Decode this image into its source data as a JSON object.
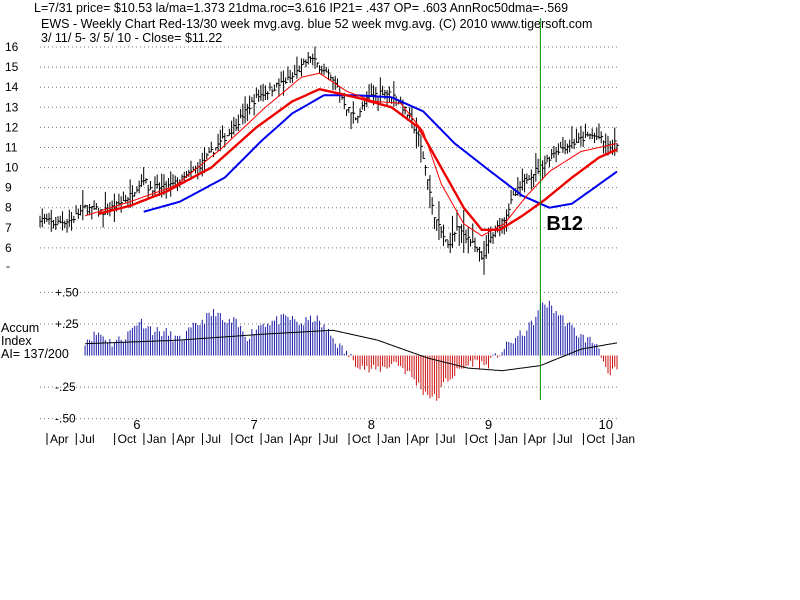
{
  "header": {
    "line1": "L=7/31  price= $10.53  la/ma=1.373 21dma.roc=3.616 IP21= .437 OP= .603 AnnRoc50dma=-.569",
    "line2": "EWS  - Weekly Chart  Red-13/30 week mvg.avg.  blue 52 week mvg.avg.  (C) 2010 www.tigersoft.com",
    "line3": " 3/ 11/ 5- 3/ 5/ 10 -      Close= $11.22"
  },
  "accum_label": {
    "line1": "Accum",
    "line2": "Index",
    "line3": "AI= 137/200"
  },
  "signal": {
    "label": "B12",
    "week": 222
  },
  "colors": {
    "price_bars": "#000000",
    "ma13": "#ff0000",
    "ma30": "#ee0000",
    "ma52": "#0000ee",
    "accum_pos": "#1c1ca8",
    "accum_neg": "#cc1111",
    "accum_avg": "#000000",
    "signal_line": "#008800",
    "grid": "#7a7a7a"
  },
  "chart_data": [
    {
      "type": "bar",
      "subtype": "ohlc-weekly",
      "ylim": [
        5,
        16.5
      ],
      "y_ticks": [
        16,
        15,
        14,
        13,
        12,
        11,
        10,
        9,
        8,
        7,
        6
      ],
      "bottom_tick": "-",
      "grid": "horizontal-dotted",
      "close_anchors": [
        [
          0,
          7.5
        ],
        [
          6,
          7.2
        ],
        [
          14,
          7.4
        ],
        [
          20,
          8.0
        ],
        [
          28,
          7.8
        ],
        [
          34,
          8.1
        ],
        [
          40,
          8.6
        ],
        [
          46,
          9.5
        ],
        [
          48,
          9.0
        ],
        [
          56,
          9.0
        ],
        [
          62,
          9.3
        ],
        [
          70,
          10.0
        ],
        [
          78,
          11.0
        ],
        [
          86,
          12.0
        ],
        [
          96,
          13.5
        ],
        [
          104,
          14.0
        ],
        [
          112,
          14.5
        ],
        [
          120,
          15.5
        ],
        [
          126,
          14.8
        ],
        [
          132,
          14.0
        ],
        [
          136,
          13.0
        ],
        [
          140,
          12.5
        ],
        [
          146,
          13.5
        ],
        [
          152,
          13.8
        ],
        [
          158,
          13.5
        ],
        [
          164,
          12.5
        ],
        [
          168,
          11.5
        ],
        [
          172,
          9.5
        ],
        [
          174,
          8.0
        ],
        [
          177,
          7.0
        ],
        [
          181,
          6.1
        ],
        [
          185,
          7.0
        ],
        [
          190,
          6.5
        ],
        [
          196,
          5.5
        ],
        [
          200,
          6.5
        ],
        [
          206,
          7.5
        ],
        [
          210,
          8.5
        ],
        [
          216,
          9.5
        ],
        [
          222,
          10.0
        ],
        [
          228,
          10.8
        ],
        [
          236,
          11.2
        ],
        [
          244,
          11.6
        ],
        [
          248,
          11.5
        ],
        [
          252,
          11.0
        ],
        [
          256,
          11.22
        ]
      ],
      "ma13_anchors": [
        [
          20,
          7.6
        ],
        [
          40,
          8.3
        ],
        [
          60,
          9.1
        ],
        [
          80,
          10.9
        ],
        [
          100,
          13.0
        ],
        [
          116,
          14.5
        ],
        [
          124,
          14.7
        ],
        [
          136,
          13.8
        ],
        [
          148,
          13.3
        ],
        [
          160,
          13.2
        ],
        [
          170,
          11.8
        ],
        [
          178,
          9.2
        ],
        [
          188,
          7.2
        ],
        [
          196,
          6.6
        ],
        [
          206,
          7.2
        ],
        [
          216,
          8.6
        ],
        [
          226,
          9.8
        ],
        [
          240,
          10.8
        ],
        [
          256,
          11.2
        ]
      ],
      "ma30_anchors": [
        [
          26,
          7.7
        ],
        [
          40,
          8.1
        ],
        [
          56,
          8.8
        ],
        [
          76,
          10.0
        ],
        [
          96,
          12.0
        ],
        [
          112,
          13.3
        ],
        [
          124,
          13.9
        ],
        [
          140,
          13.5
        ],
        [
          156,
          13.0
        ],
        [
          168,
          12.0
        ],
        [
          178,
          10.0
        ],
        [
          188,
          8.0
        ],
        [
          196,
          6.9
        ],
        [
          204,
          6.9
        ],
        [
          214,
          7.6
        ],
        [
          224,
          8.4
        ],
        [
          236,
          9.5
        ],
        [
          248,
          10.5
        ],
        [
          256,
          10.9
        ]
      ],
      "ma52_anchors": [
        [
          46,
          7.8
        ],
        [
          62,
          8.3
        ],
        [
          82,
          9.5
        ],
        [
          98,
          11.3
        ],
        [
          112,
          12.7
        ],
        [
          126,
          13.6
        ],
        [
          140,
          13.6
        ],
        [
          156,
          13.5
        ],
        [
          170,
          12.8
        ],
        [
          184,
          11.2
        ],
        [
          200,
          9.8
        ],
        [
          214,
          8.6
        ],
        [
          226,
          8.0
        ],
        [
          236,
          8.2
        ],
        [
          246,
          9.0
        ],
        [
          256,
          9.8
        ]
      ]
    },
    {
      "type": "bar",
      "name": "Accum Index",
      "ylim": [
        -0.55,
        0.55
      ],
      "y_ticks": [
        {
          "v": 0.5,
          "label": "+.50"
        },
        {
          "v": 0.25,
          "label": "+.25"
        },
        {
          "v": -0.25,
          "label": "-.25"
        },
        {
          "v": -0.5,
          "label": "-.50"
        }
      ],
      "value_anchors": [
        [
          0,
          0.1
        ],
        [
          4,
          0.18
        ],
        [
          8,
          0.25
        ],
        [
          12,
          0.15
        ],
        [
          16,
          0.2
        ],
        [
          20,
          0.12
        ],
        [
          26,
          0.18
        ],
        [
          32,
          0.1
        ],
        [
          38,
          0.15
        ],
        [
          44,
          0.28
        ],
        [
          50,
          0.2
        ],
        [
          56,
          0.18
        ],
        [
          62,
          0.12
        ],
        [
          68,
          0.22
        ],
        [
          74,
          0.3
        ],
        [
          78,
          0.35
        ],
        [
          82,
          0.25
        ],
        [
          86,
          0.27
        ],
        [
          92,
          0.15
        ],
        [
          98,
          0.25
        ],
        [
          106,
          0.28
        ],
        [
          110,
          0.3
        ],
        [
          116,
          0.25
        ],
        [
          122,
          0.3
        ],
        [
          128,
          0.18
        ],
        [
          134,
          0.05
        ],
        [
          140,
          -0.05
        ],
        [
          146,
          -0.12
        ],
        [
          152,
          -0.1
        ],
        [
          158,
          -0.05
        ],
        [
          164,
          -0.15
        ],
        [
          170,
          -0.28
        ],
        [
          176,
          -0.35
        ],
        [
          180,
          -0.2
        ],
        [
          186,
          -0.12
        ],
        [
          192,
          -0.05
        ],
        [
          198,
          -0.08
        ],
        [
          204,
          0.02
        ],
        [
          210,
          0.12
        ],
        [
          216,
          0.2
        ],
        [
          220,
          0.3
        ],
        [
          223,
          0.42
        ],
        [
          226,
          0.4
        ],
        [
          230,
          0.33
        ],
        [
          234,
          0.25
        ],
        [
          240,
          0.15
        ],
        [
          244,
          0.12
        ],
        [
          248,
          0.08
        ],
        [
          252,
          -0.18
        ],
        [
          256,
          -0.1
        ]
      ],
      "avg_anchors": [
        [
          0,
          0.08
        ],
        [
          60,
          0.12
        ],
        [
          100,
          0.17
        ],
        [
          130,
          0.2
        ],
        [
          150,
          0.12
        ],
        [
          172,
          -0.02
        ],
        [
          190,
          -0.1
        ],
        [
          205,
          -0.12
        ],
        [
          222,
          -0.08
        ],
        [
          240,
          0.05
        ],
        [
          256,
          0.1
        ]
      ]
    }
  ],
  "x_axis": {
    "weeks_total": 256,
    "years": [
      {
        "label": "6",
        "week": 43
      },
      {
        "label": "7",
        "week": 95
      },
      {
        "label": "8",
        "week": 147
      },
      {
        "label": "9",
        "week": 199
      },
      {
        "label": "10",
        "week": 251
      }
    ],
    "months": [
      {
        "label": "Apr",
        "week": 0
      },
      {
        "label": "Jul",
        "week": 13
      },
      {
        "label": "Oct",
        "week": 30
      },
      {
        "label": "Jan",
        "week": 43
      },
      {
        "label": "Apr",
        "week": 56
      },
      {
        "label": "Jul",
        "week": 69
      },
      {
        "label": "Oct",
        "week": 82
      },
      {
        "label": "Jan",
        "week": 95
      },
      {
        "label": "Apr",
        "week": 108
      },
      {
        "label": "Jul",
        "week": 121
      },
      {
        "label": "Oct",
        "week": 134
      },
      {
        "label": "Jan",
        "week": 147
      },
      {
        "label": "Apr",
        "week": 160
      },
      {
        "label": "Jul",
        "week": 173
      },
      {
        "label": "Oct",
        "week": 186
      },
      {
        "label": "Jan",
        "week": 199
      },
      {
        "label": "Apr",
        "week": 212
      },
      {
        "label": "Jul",
        "week": 225
      },
      {
        "label": "Oct",
        "week": 238
      },
      {
        "label": "Jan",
        "week": 251
      }
    ]
  }
}
